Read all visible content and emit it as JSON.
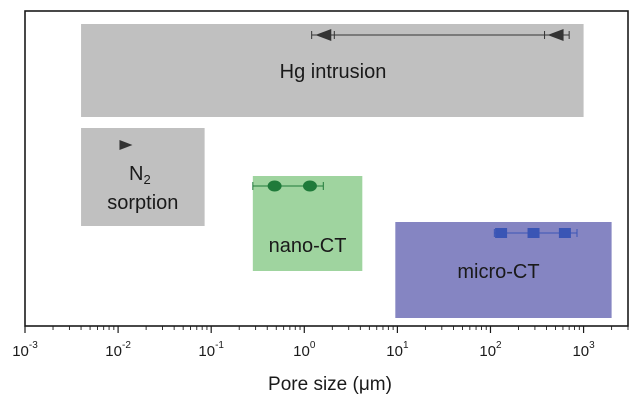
{
  "chart_data": {
    "type": "range-bar",
    "xlabel": "Pore size (μm)",
    "xscale": "log",
    "xlim": [
      0.001,
      3000
    ],
    "xticks": [
      {
        "base": "10",
        "exp": "-3",
        "value": 0.001
      },
      {
        "base": "10",
        "exp": "-2",
        "value": 0.01
      },
      {
        "base": "10",
        "exp": "-1",
        "value": 0.1
      },
      {
        "base": "10",
        "exp": "0",
        "value": 1
      },
      {
        "base": "10",
        "exp": "1",
        "value": 10
      },
      {
        "base": "10",
        "exp": "2",
        "value": 100
      },
      {
        "base": "10",
        "exp": "3",
        "value": 1000
      }
    ],
    "ranges": [
      {
        "key": "hg",
        "label": "Hg intrusion",
        "x_min": 0.004,
        "x_max": 1000,
        "color": "#c0c0c0",
        "marker": "triangle",
        "marker_color": "#333333",
        "range_line": [
          1.2,
          700
        ],
        "points": [
          1.6,
          500
        ]
      },
      {
        "key": "n2",
        "label": "N",
        "label_sub": "2",
        "label_line2": "sorption",
        "x_min": 0.004,
        "x_max": 0.085,
        "color": "#c0c0c0",
        "marker": "triangle",
        "marker_color": "#333333",
        "range_line": null,
        "points": [
          0.012
        ]
      },
      {
        "key": "nano",
        "label": "nano-CT",
        "x_min": 0.28,
        "x_max": 4.2,
        "color": "#9fd49f",
        "marker": "ellipse",
        "marker_color": "#1f7a3a",
        "range_line": [
          0.28,
          1.6
        ],
        "points": [
          0.48,
          1.15
        ]
      },
      {
        "key": "micro",
        "label": "micro-CT",
        "x_min": 9.5,
        "x_max": 2000,
        "color": "#8585c2",
        "marker": "square",
        "marker_color": "#3a55b5",
        "range_line": [
          110,
          850
        ],
        "points": [
          130,
          290,
          630
        ]
      }
    ]
  }
}
